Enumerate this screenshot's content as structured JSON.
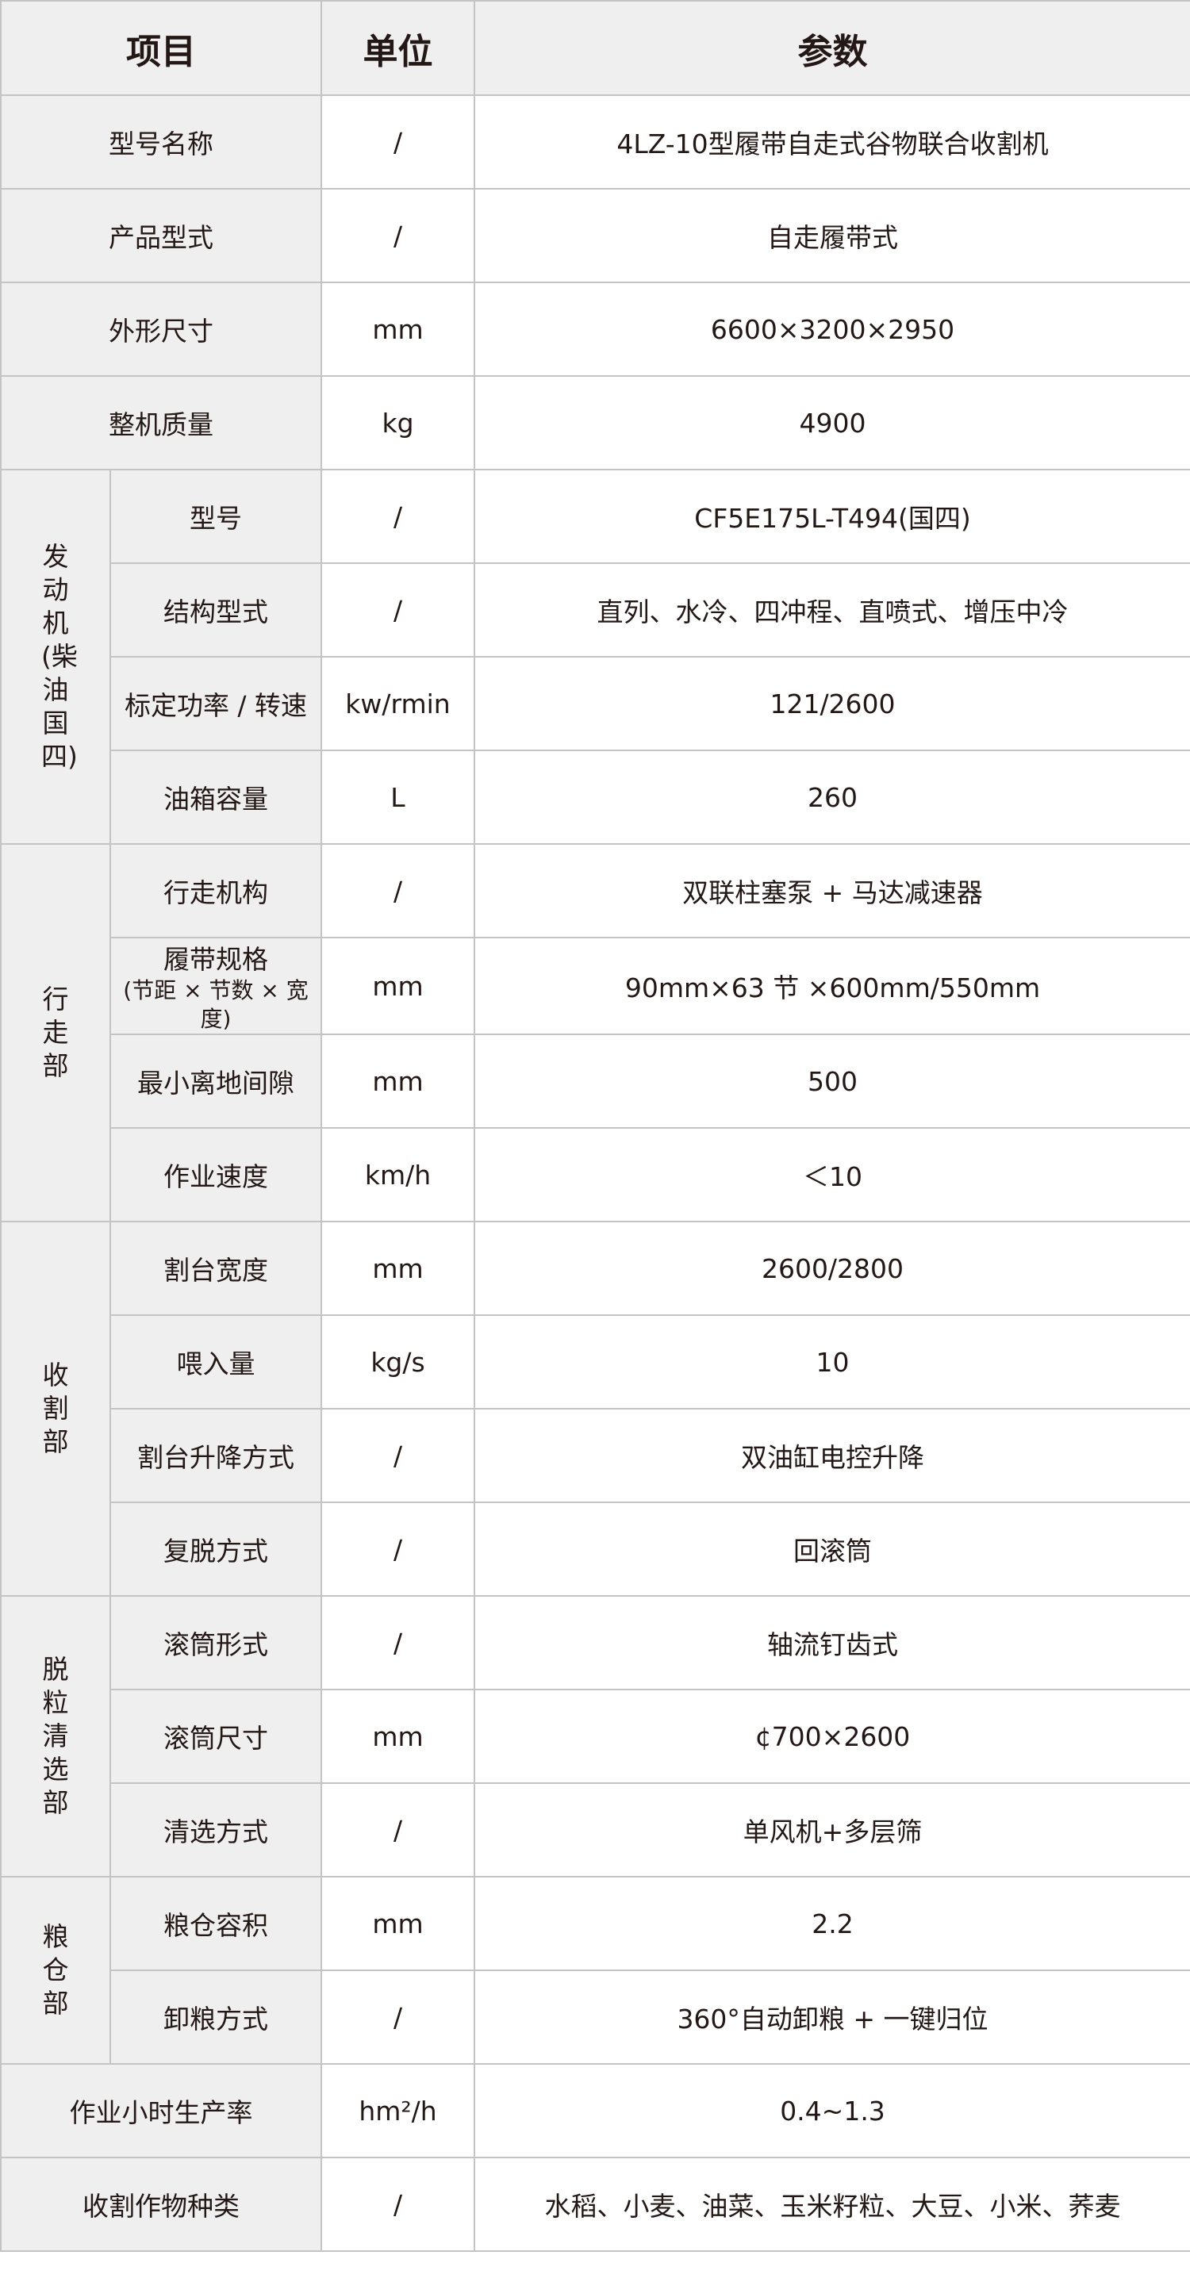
{
  "header": {
    "item": "项目",
    "unit": "单位",
    "param": "参数"
  },
  "rows": {
    "model": {
      "label": "型号名称",
      "unit": "/",
      "value": "4LZ-10型履带自走式谷物联合收割机"
    },
    "form": {
      "label": "产品型式",
      "unit": "/",
      "value": "自走履带式"
    },
    "size": {
      "label": "外形尺寸",
      "unit": "mm",
      "value": "6600×3200×2950"
    },
    "mass": {
      "label": "整机质量",
      "unit": "kg",
      "value": "4900"
    }
  },
  "engine": {
    "group": "发动机(柴油 国四)",
    "items": [
      {
        "label": "型号",
        "unit": "/",
        "value": "CF5E175L-T494(国四)"
      },
      {
        "label": "结构型式",
        "unit": "/",
        "value": "直列、水冷、四冲程、直喷式、增压中冷"
      },
      {
        "label": "标定功率 / 转速",
        "unit": "kw/rmin",
        "value": "121/2600"
      },
      {
        "label": "油箱容量",
        "unit": "L",
        "value": "260"
      }
    ]
  },
  "travel": {
    "group": "行走部",
    "items": [
      {
        "label": "行走机构",
        "unit": "/",
        "value": "双联柱塞泵 + 马达减速器"
      },
      {
        "label": "履带规格",
        "sublabel": "(节距 × 节数 × 宽度)",
        "unit": "mm",
        "value": "90mm×63 节 ×600mm/550mm"
      },
      {
        "label": "最小离地间隙",
        "unit": "mm",
        "value": "500"
      },
      {
        "label": "作业速度",
        "unit": "km/h",
        "value": "＜10"
      }
    ]
  },
  "harvest": {
    "group": "收割部",
    "items": [
      {
        "label": "割台宽度",
        "unit": "mm",
        "value": "2600/2800"
      },
      {
        "label": "喂入量",
        "unit": "kg/s",
        "value": "10"
      },
      {
        "label": "割台升降方式",
        "unit": "/",
        "value": "双油缸电控升降"
      },
      {
        "label": "复脱方式",
        "unit": "/",
        "value": "回滚筒"
      }
    ]
  },
  "threshing": {
    "group": "脱粒清选部",
    "items": [
      {
        "label": "滚筒形式",
        "unit": "/",
        "value": "轴流钉齿式"
      },
      {
        "label": "滚筒尺寸",
        "unit": "mm",
        "value": "¢700×2600"
      },
      {
        "label": "清选方式",
        "unit": "/",
        "value": "单风机+多层筛"
      }
    ]
  },
  "grain": {
    "group": "粮仓部",
    "items": [
      {
        "label": "粮仓容积",
        "unit": "mm",
        "value": "2.2"
      },
      {
        "label": "卸粮方式",
        "unit": "/",
        "value": "360°自动卸粮 + 一键归位"
      }
    ]
  },
  "footer_rows": {
    "productivity": {
      "label": "作业小时生产率",
      "unit": "hm²/h",
      "value": "0.4~1.3"
    },
    "crops": {
      "label": "收割作物种类",
      "unit": "/",
      "value": "水稻、小麦、油菜、玉米籽粒、大豆、小米、荞麦"
    }
  }
}
